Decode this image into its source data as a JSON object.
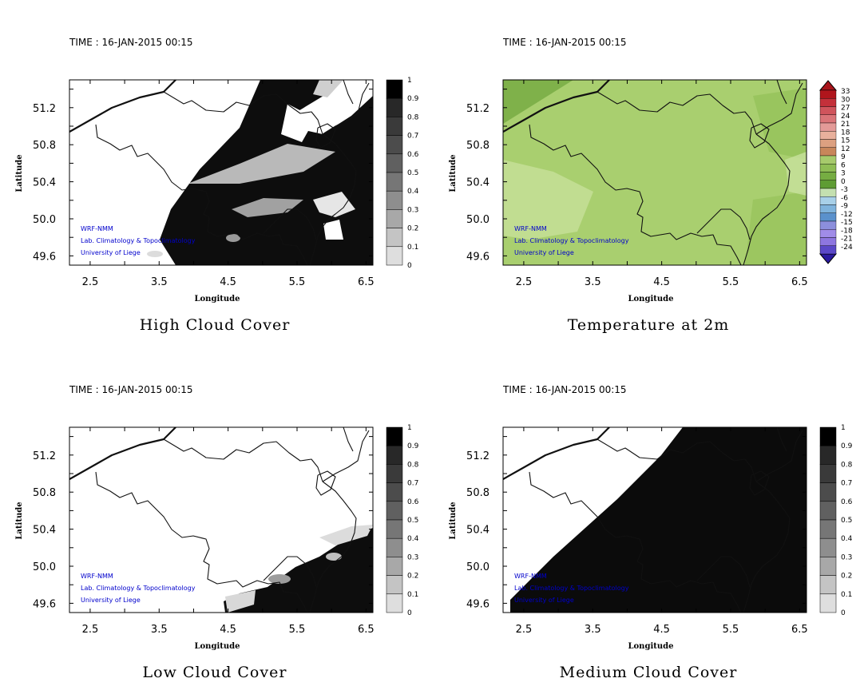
{
  "chart_data": [
    {
      "type": "heatmap",
      "title": "High Cloud Cover",
      "time_label": "TIME : 16-JAN-2015 00:15",
      "xlabel": "Longitude",
      "ylabel": "Latitude",
      "x_ticks": [
        "2.5",
        "3.5",
        "4.5",
        "5.5",
        "6.5"
      ],
      "y_ticks": [
        "51.2",
        "50.8",
        "50.4",
        "50.0",
        "49.6"
      ],
      "xlim": [
        2.2,
        6.6
      ],
      "ylim": [
        49.5,
        51.5
      ],
      "colorbar": {
        "min": 0,
        "max": 1,
        "labels": [
          "1",
          "0.9",
          "0.8",
          "0.7",
          "0.6",
          "0.5",
          "0.4",
          "0.3",
          "0.2",
          "0.1",
          "0"
        ],
        "colormap": "grayscale"
      },
      "credits": [
        "WRF-NMM",
        "Lab. Climatology & Topoclimatology",
        "University of Liege"
      ]
    },
    {
      "type": "heatmap",
      "title": "Temperature at 2m",
      "time_label": "TIME : 16-JAN-2015 00:15",
      "xlabel": "Longitude",
      "ylabel": "Latitude",
      "x_ticks": [
        "2.5",
        "3.5",
        "4.5",
        "5.5",
        "6.5"
      ],
      "y_ticks": [
        "51.2",
        "50.8",
        "50.4",
        "50.0",
        "49.6"
      ],
      "xlim": [
        2.2,
        6.6
      ],
      "ylim": [
        49.5,
        51.5
      ],
      "colorbar": {
        "min": -24,
        "max": 33,
        "labels": [
          "33",
          "30",
          "27",
          "24",
          "21",
          "18",
          "15",
          "12",
          "9",
          "6",
          "3",
          "0",
          "-3",
          "-6",
          "-9",
          "-12",
          "-15",
          "-18",
          "-21",
          "-24"
        ],
        "colormap": "temperature"
      },
      "credits": [
        "WRF-NMM",
        "Lab. Climatology & Topoclimatology",
        "University of Liege"
      ]
    },
    {
      "type": "heatmap",
      "title": "Low Cloud Cover",
      "time_label": "TIME : 16-JAN-2015 00:15",
      "xlabel": "Longitude",
      "ylabel": "Latitude",
      "x_ticks": [
        "2.5",
        "3.5",
        "4.5",
        "5.5",
        "6.5"
      ],
      "y_ticks": [
        "51.2",
        "50.8",
        "50.4",
        "50.0",
        "49.6"
      ],
      "xlim": [
        2.2,
        6.6
      ],
      "ylim": [
        49.5,
        51.5
      ],
      "colorbar": {
        "min": 0,
        "max": 1,
        "labels": [
          "1",
          "0.9",
          "0.8",
          "0.7",
          "0.6",
          "0.5",
          "0.4",
          "0.3",
          "0.2",
          "0.1",
          "0"
        ],
        "colormap": "grayscale"
      },
      "credits": [
        "WRF-NMM",
        "Lab. Climatology & Topoclimatology",
        "University of Liege"
      ]
    },
    {
      "type": "heatmap",
      "title": "Medium Cloud Cover",
      "time_label": "TIME : 16-JAN-2015 00:15",
      "xlabel": "Longitude",
      "ylabel": "Latitude",
      "x_ticks": [
        "2.5",
        "3.5",
        "4.5",
        "5.5",
        "6.5"
      ],
      "y_ticks": [
        "51.2",
        "50.8",
        "50.4",
        "50.0",
        "49.6"
      ],
      "xlim": [
        2.2,
        6.6
      ],
      "ylim": [
        49.5,
        51.5
      ],
      "colorbar": {
        "min": 0,
        "max": 1,
        "labels": [
          "1",
          "0.9",
          "0.8",
          "0.7",
          "0.6",
          "0.5",
          "0.4",
          "0.3",
          "0.2",
          "0.1",
          "0"
        ],
        "colormap": "grayscale"
      },
      "credits": [
        "WRF-NMM",
        "Lab. Climatology & Topoclimatology",
        "University of Liege"
      ]
    }
  ]
}
